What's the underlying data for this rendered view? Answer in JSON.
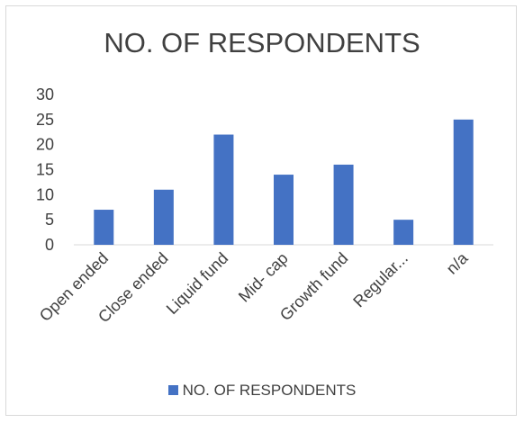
{
  "chart_data": {
    "type": "bar",
    "title": "NO. OF RESPONDENTS",
    "categories": [
      "Open ended",
      "Close ended",
      "Liquid fund",
      "Mid- cap",
      "Growth fund",
      "Regular...",
      "n/a"
    ],
    "series": [
      {
        "name": "NO. OF RESPONDENTS",
        "values": [
          7,
          11,
          22,
          14,
          16,
          5,
          25
        ],
        "color": "#4472C4"
      }
    ],
    "ylim": [
      0,
      30
    ],
    "yticks": [
      0,
      5,
      10,
      15,
      20,
      25,
      30
    ],
    "grid": false,
    "legend": "bottom",
    "xlabel": "",
    "ylabel": ""
  }
}
